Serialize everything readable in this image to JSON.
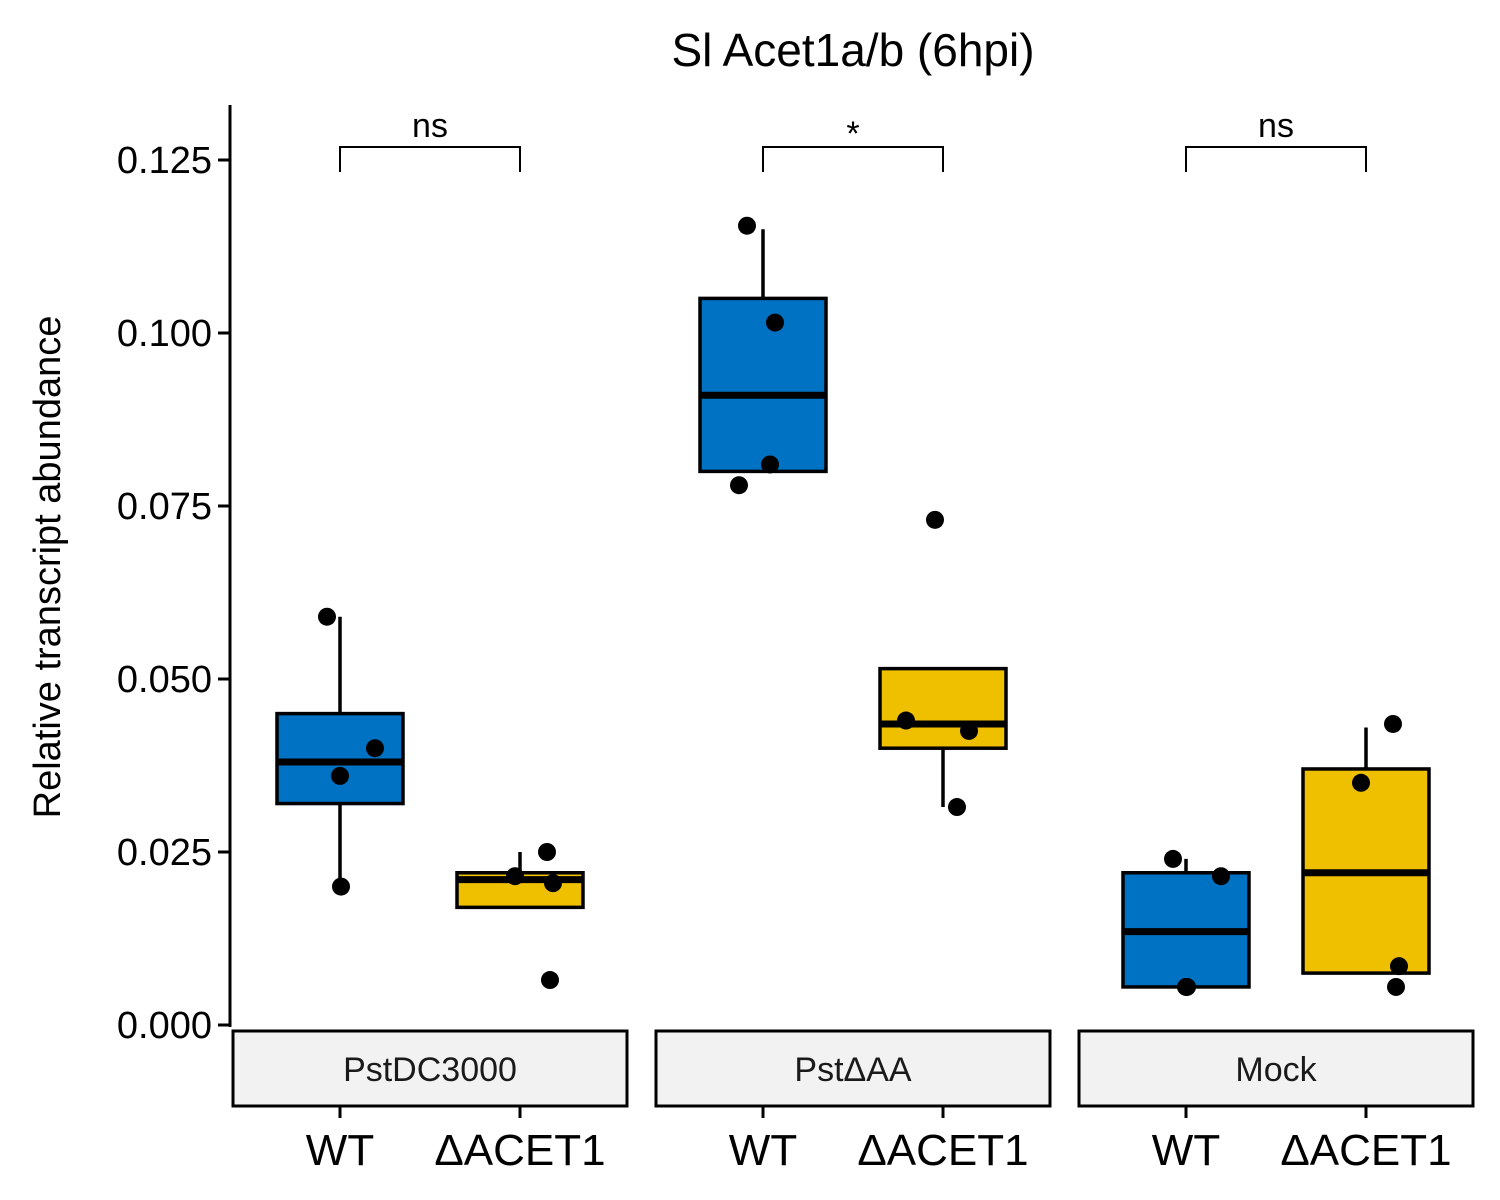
{
  "chart_data": {
    "type": "boxplot",
    "title": "Sl Acet1a/b (6hpi)",
    "xlabel": "",
    "ylabel": "Relative transcript abundance",
    "ylim": [
      0,
      0.125
    ],
    "yticks": [
      "0.000",
      "0.025",
      "0.050",
      "0.075",
      "0.100",
      "0.125"
    ],
    "colors": {
      "WT": "#0072C3",
      "ΔACET1": "#EFC000"
    },
    "grid": false,
    "legend": "none",
    "facets": [
      {
        "label": "PstDC3000",
        "significance": "ns",
        "groups": [
          {
            "name": "WT",
            "min": 0.02,
            "q1": 0.032,
            "median": 0.038,
            "q3": 0.045,
            "max": 0.059,
            "points": [
              0.059,
              0.04,
              0.036,
              0.02
            ]
          },
          {
            "name": "ΔACET1",
            "min": 0.017,
            "q1": 0.017,
            "median": 0.021,
            "q3": 0.022,
            "max": 0.025,
            "points": [
              0.025,
              0.0215,
              0.0205,
              0.0065
            ]
          }
        ]
      },
      {
        "label": "PstΔAA",
        "significance": "*",
        "groups": [
          {
            "name": "WT",
            "min": 0.08,
            "q1": 0.08,
            "median": 0.091,
            "q3": 0.105,
            "max": 0.115,
            "points": [
              0.1155,
              0.1015,
              0.081,
              0.078
            ]
          },
          {
            "name": "ΔACET1",
            "min": 0.0315,
            "q1": 0.04,
            "median": 0.0435,
            "q3": 0.0515,
            "max": 0.0515,
            "points": [
              0.073,
              0.044,
              0.0425,
              0.0315
            ]
          }
        ]
      },
      {
        "label": "Mock",
        "significance": "ns",
        "groups": [
          {
            "name": "WT",
            "min": 0.0055,
            "q1": 0.0055,
            "median": 0.0135,
            "q3": 0.022,
            "max": 0.024,
            "points": [
              0.024,
              0.0215,
              0.0055,
              0.0055
            ]
          },
          {
            "name": "ΔACET1",
            "min": 0.0075,
            "q1": 0.0075,
            "median": 0.022,
            "q3": 0.037,
            "max": 0.043,
            "points": [
              0.0435,
              0.035,
              0.0085,
              0.0055
            ]
          }
        ]
      }
    ]
  }
}
